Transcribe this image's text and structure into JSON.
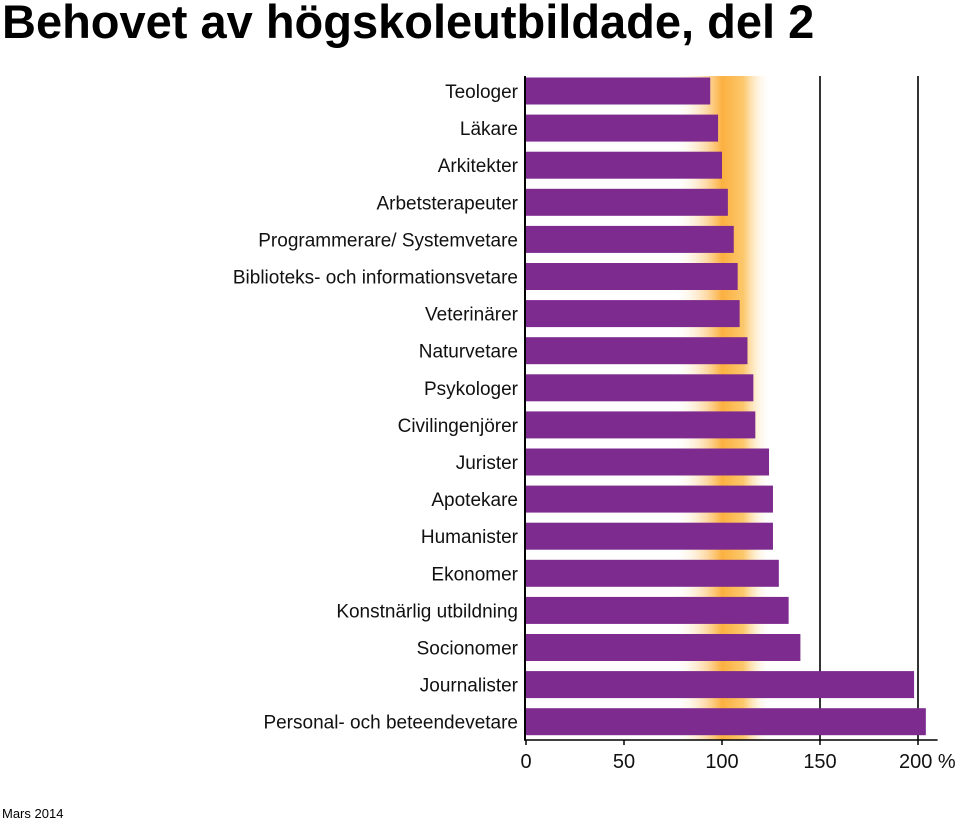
{
  "page": {
    "title": "Behovet av högskoleutbildade, del 2",
    "footer": "Mars 2014"
  },
  "chart_data": {
    "type": "bar",
    "orientation": "horizontal",
    "categories": [
      "Teologer",
      "Läkare",
      "Arkitekter",
      "Arbetsterapeuter",
      "Programmerare/ Systemvetare",
      "Biblioteks- och informationsvetare",
      "Veterinärer",
      "Naturvetare",
      "Psykologer",
      "Civilingenjörer",
      "Jurister",
      "Apotekare",
      "Humanister",
      "Ekonomer",
      "Konstnärlig utbildning",
      "Socionomer",
      "Journalister",
      "Personal- och beteendevetare"
    ],
    "values": [
      94,
      98,
      100,
      103,
      106,
      108,
      109,
      113,
      116,
      117,
      124,
      126,
      126,
      129,
      134,
      140,
      198,
      204
    ],
    "xlim": [
      0,
      210
    ],
    "xticks": [
      0,
      50,
      100,
      150,
      200
    ],
    "xtick_labels": [
      "0",
      "50",
      "100",
      "150",
      "200 %"
    ],
    "reference_lines": [
      150,
      200
    ],
    "balance_band": [
      75,
      125
    ],
    "bar_color": "#7e2b90",
    "band_color": "#fbb040",
    "grid": false,
    "legend": "none"
  }
}
